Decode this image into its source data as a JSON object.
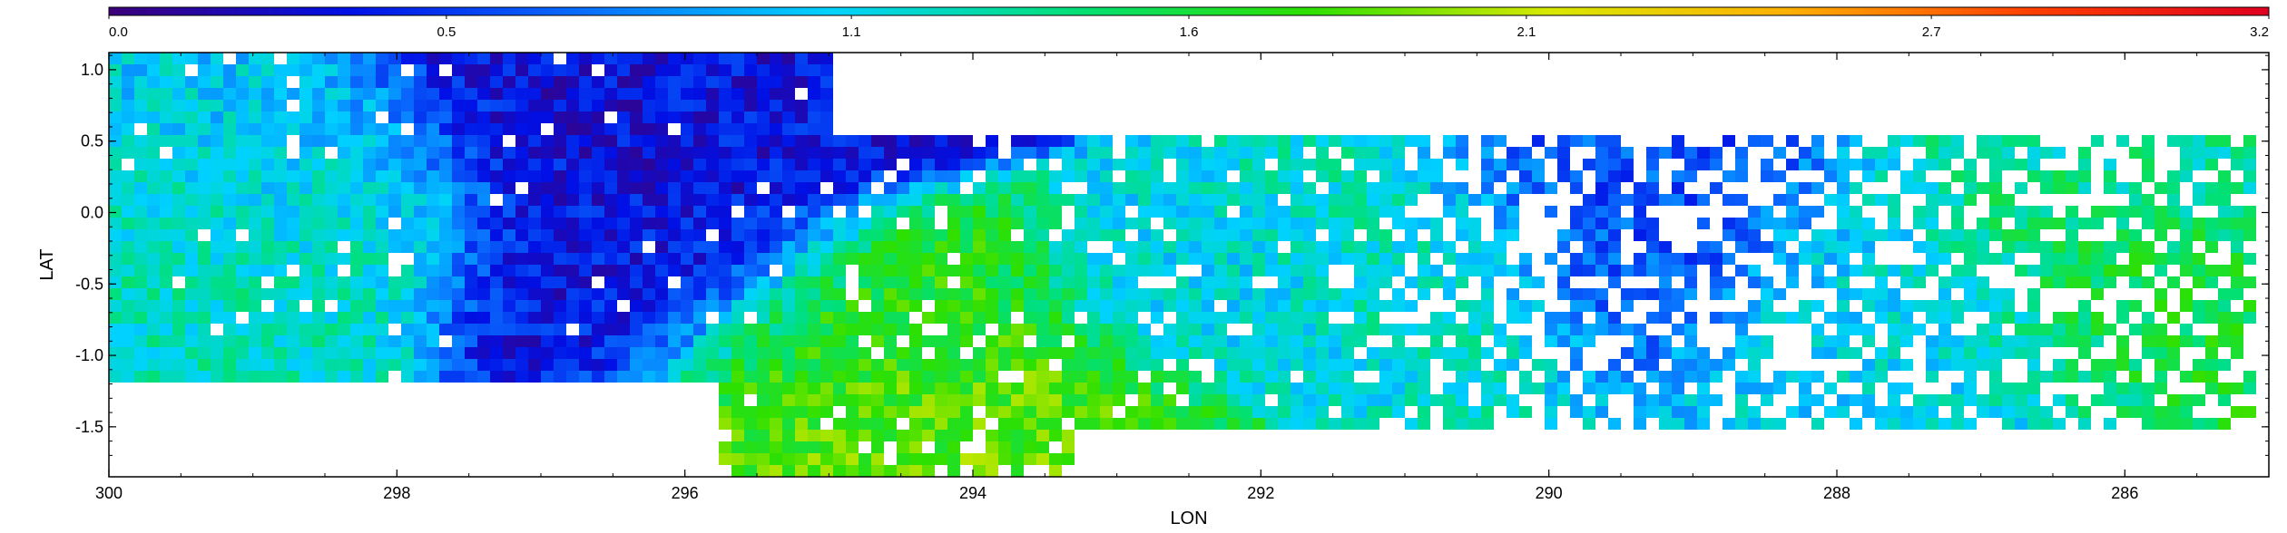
{
  "chart_data": {
    "type": "heatmap",
    "title": "",
    "xlabel": "LON",
    "ylabel": "LAT",
    "x_reversed": true,
    "xlim": [
      300,
      285.0
    ],
    "ylim": [
      -1.85,
      1.12
    ],
    "x_ticks": [
      300,
      298,
      296,
      294,
      292,
      290,
      288,
      286
    ],
    "x_tick_labels": [
      "300",
      "298",
      "296",
      "294",
      "292",
      "290",
      "288",
      "286"
    ],
    "y_ticks": [
      1.0,
      0.5,
      0.0,
      -0.5,
      -1.0,
      -1.5
    ],
    "y_tick_labels": [
      "1.0",
      "0.5",
      "0.0",
      "-0.5",
      "-1.0",
      "-1.5"
    ],
    "colorbar": {
      "position": "top",
      "range": [
        0.0,
        3.2
      ],
      "ticks": [
        0.0,
        0.5,
        1.1,
        1.6,
        2.1,
        2.7,
        3.2
      ],
      "tick_labels": [
        "0.0",
        "0.5",
        "1.1",
        "1.6",
        "2.1",
        "2.7",
        "3.2"
      ],
      "colors": [
        "#3c007a",
        "#0010e6",
        "#0a70ff",
        "#00d2ff",
        "#00e07a",
        "#2ee000",
        "#d8e800",
        "#ffb000",
        "#ff4000",
        "#e0001e"
      ]
    },
    "coverage_regions": [
      {
        "lon": [
          300,
          295.0
        ],
        "lat": [
          -1.15,
          1.1
        ],
        "note": "western block"
      },
      {
        "lon": [
          295.0,
          285.1
        ],
        "lat": [
          -1.55,
          0.55
        ],
        "note": "main strip"
      },
      {
        "lon": [
          295.8,
          293.3
        ],
        "lat": [
          -1.85,
          -1.05
        ],
        "note": "southern extension"
      }
    ],
    "value_features": [
      {
        "lon": 299.0,
        "lat": -0.1,
        "value": 1.25
      },
      {
        "lon": 298.6,
        "lat": 0.3,
        "value": 1.05
      },
      {
        "lon": 296.8,
        "lat": 0.6,
        "value": 0.3
      },
      {
        "lon": 296.2,
        "lat": -0.2,
        "value": 0.35
      },
      {
        "lon": 295.6,
        "lat": 0.8,
        "value": 0.35
      },
      {
        "lon": 294.5,
        "lat": -0.7,
        "value": 1.7
      },
      {
        "lon": 293.8,
        "lat": -1.35,
        "value": 1.85
      },
      {
        "lon": 292.3,
        "lat": -0.6,
        "value": 1.1
      },
      {
        "lon": 291.1,
        "lat": -0.35,
        "value": 1.25
      },
      {
        "lon": 289.5,
        "lat": -0.1,
        "value": 0.6
      },
      {
        "lon": 287.5,
        "lat": -0.5,
        "value": 1.1
      },
      {
        "lon": 286.1,
        "lat": -0.3,
        "value": 1.6
      },
      {
        "lon": 285.8,
        "lat": 0.2,
        "value": 1.3
      }
    ],
    "grid": false,
    "legend": "colorbar-top"
  }
}
